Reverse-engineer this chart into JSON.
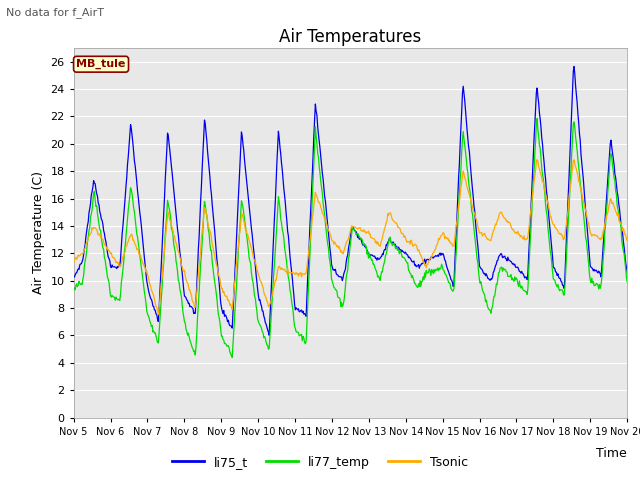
{
  "title": "Air Temperatures",
  "xlabel": "Time",
  "ylabel": "Air Temperature (C)",
  "no_data_label": "No data for f_AirT",
  "station_label": "MB_tule",
  "ylim": [
    0,
    27
  ],
  "yticks": [
    0,
    2,
    4,
    6,
    8,
    10,
    12,
    14,
    16,
    18,
    20,
    22,
    24,
    26
  ],
  "xtick_labels": [
    "Nov 5",
    "Nov 6",
    "Nov 7",
    "Nov 8",
    "Nov 9",
    "Nov 10",
    "Nov 11",
    "Nov 12",
    "Nov 13",
    "Nov 14",
    "Nov 15",
    "Nov 16",
    "Nov 17",
    "Nov 18",
    "Nov 19",
    "Nov 20"
  ],
  "line_colors": {
    "li75_t": "#0000ee",
    "li77_temp": "#00dd00",
    "Tsonic": "#ffaa00"
  },
  "fig_bg_color": "#ffffff",
  "plot_bg_color": "#e8e8e8",
  "grid_color": "#ffffff",
  "legend_entries": [
    "li75_t",
    "li77_temp",
    "Tsonic"
  ],
  "box_facecolor": "#ffffcc",
  "box_edgecolor": "#880000",
  "title_fontsize": 12,
  "label_fontsize": 9,
  "tick_fontsize": 8,
  "n_days": 15,
  "n_per_day": 48,
  "ct_75": [
    0,
    0.25,
    0.55,
    1.0,
    1.25,
    1.55,
    2.0,
    2.3,
    2.55,
    3.0,
    3.3,
    3.55,
    4.0,
    4.3,
    4.55,
    5.0,
    5.3,
    5.55,
    6.0,
    6.3,
    6.55,
    7.0,
    7.3,
    7.55,
    8.0,
    8.3,
    8.55,
    9.0,
    9.3,
    9.55,
    10.0,
    10.3,
    10.55,
    11.0,
    11.3,
    11.55,
    12.0,
    12.3,
    12.55,
    13.0,
    13.3,
    13.55,
    14.0,
    14.3,
    14.55,
    15.0
  ],
  "cv_75": [
    10.2,
    11.5,
    17.5,
    11,
    11,
    21.5,
    9.5,
    7,
    21,
    9,
    7.5,
    22,
    8,
    6.5,
    21,
    9,
    6,
    21,
    8,
    7.5,
    23,
    11,
    10,
    14,
    12,
    11.5,
    13,
    12,
    11,
    11.5,
    12,
    9.5,
    24.5,
    11,
    10,
    12,
    11,
    10,
    24.5,
    11,
    9.5,
    26,
    11,
    10.5,
    20.5,
    10.5
  ],
  "ct_77": [
    0,
    0.25,
    0.55,
    1.0,
    1.25,
    1.55,
    2.0,
    2.3,
    2.55,
    3.0,
    3.3,
    3.55,
    4.0,
    4.3,
    4.55,
    5.0,
    5.3,
    5.55,
    6.0,
    6.3,
    6.55,
    7.0,
    7.3,
    7.55,
    8.0,
    8.3,
    8.55,
    9.0,
    9.3,
    9.55,
    10.0,
    10.3,
    10.55,
    11.0,
    11.3,
    11.55,
    12.0,
    12.3,
    12.55,
    13.0,
    13.3,
    13.55,
    14.0,
    14.3,
    14.55,
    15.0
  ],
  "cv_77": [
    9.5,
    10,
    16.5,
    9,
    8.5,
    17,
    7.5,
    5.5,
    16,
    7,
    4.5,
    16,
    6,
    4.5,
    16,
    7,
    5,
    16,
    6.5,
    5.5,
    21,
    10,
    8,
    14,
    12,
    10,
    13,
    11.5,
    9.5,
    10.5,
    11,
    9,
    21,
    10,
    7.5,
    11,
    10,
    9,
    22,
    10,
    9,
    22,
    10,
    9.5,
    19.5,
    10
  ],
  "ct_so": [
    0,
    0.25,
    0.55,
    1.0,
    1.25,
    1.55,
    2.0,
    2.3,
    2.55,
    3.0,
    3.3,
    3.55,
    4.0,
    4.3,
    4.55,
    5.0,
    5.3,
    5.55,
    6.0,
    6.3,
    6.55,
    7.0,
    7.3,
    7.55,
    8.0,
    8.3,
    8.55,
    9.0,
    9.3,
    9.55,
    10.0,
    10.3,
    10.55,
    11.0,
    11.3,
    11.55,
    12.0,
    12.3,
    12.55,
    13.0,
    13.3,
    13.55,
    14.0,
    14.3,
    14.55,
    15.0
  ],
  "cv_so": [
    11.5,
    12,
    14,
    12,
    11,
    13.5,
    10.5,
    7.5,
    15,
    10.5,
    8,
    15.5,
    9.5,
    8,
    15,
    10.5,
    8,
    11,
    10.5,
    10.5,
    16.5,
    13,
    12,
    14,
    13.5,
    12.5,
    15,
    13,
    12.5,
    11,
    13.5,
    12.5,
    18,
    13.5,
    13,
    15,
    13.5,
    13,
    19,
    14,
    13,
    19,
    13.5,
    13,
    16,
    13
  ]
}
